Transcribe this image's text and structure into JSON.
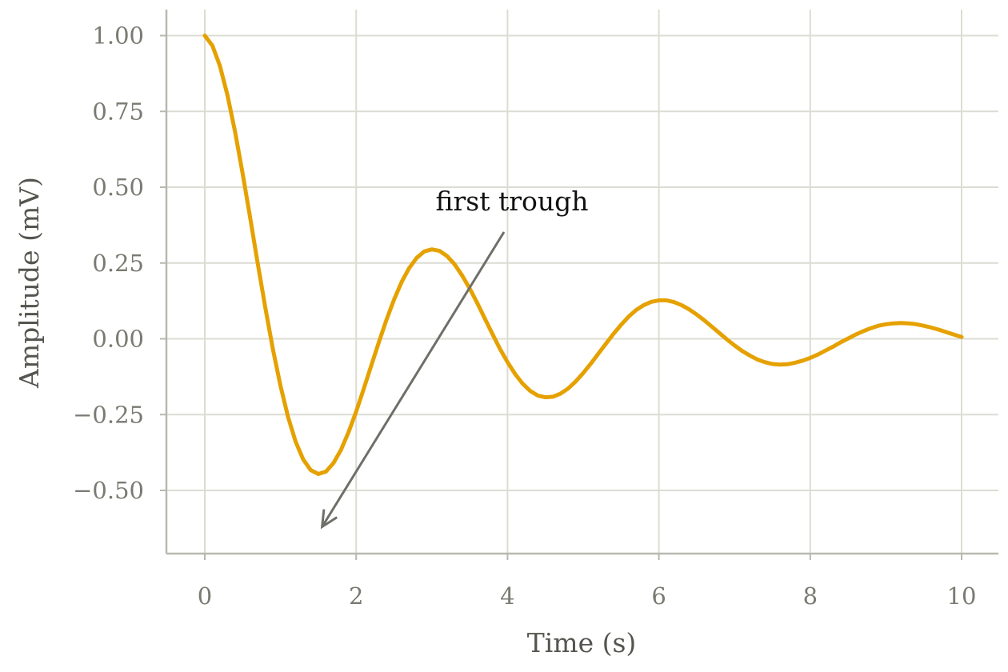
{
  "chart_data": {
    "type": "line",
    "title": "",
    "xlabel": "Time (s)",
    "ylabel": "Amplitude (mV)",
    "xlim": [
      -0.5,
      10.5
    ],
    "ylim": [
      -0.72,
      1.08
    ],
    "x_ticks": [
      0,
      2,
      4,
      6,
      8,
      10
    ],
    "x_tick_labels": [
      "0",
      "2",
      "4",
      "6",
      "8",
      "10"
    ],
    "y_ticks": [
      1.0,
      0.75,
      0.5,
      0.25,
      0.0,
      -0.25,
      -0.5
    ],
    "y_tick_labels": [
      "1.00",
      "0.75",
      "0.50",
      "0.25",
      "0.00",
      "−0.25",
      "−0.50"
    ],
    "grid": true,
    "legend": "none",
    "series": [
      {
        "color": "#e5a100",
        "x": [
          0,
          0.1,
          0.2,
          0.3,
          0.4,
          0.5,
          0.6,
          0.7,
          0.8,
          0.9,
          1.0,
          1.1,
          1.2,
          1.3,
          1.4,
          1.5,
          1.6,
          1.7,
          1.8,
          1.9,
          2.0,
          2.1,
          2.2,
          2.3,
          2.4,
          2.5,
          2.6,
          2.7,
          2.8,
          2.9,
          3.0,
          3.1,
          3.2,
          3.3,
          3.4,
          3.5,
          3.6,
          3.7,
          3.8,
          3.9,
          4.0,
          4.1,
          4.2,
          4.3,
          4.4,
          4.5,
          4.6,
          4.7,
          4.8,
          4.9,
          5.0,
          5.1,
          5.2,
          5.3,
          5.4,
          5.5,
          5.6,
          5.7,
          5.8,
          5.9,
          6.0,
          6.1,
          6.2,
          6.3,
          6.4,
          6.5,
          6.6,
          6.7,
          6.8,
          6.9,
          7.0,
          7.1,
          7.2,
          7.3,
          7.4,
          7.5,
          7.6,
          7.7,
          7.8,
          7.9,
          8.0,
          8.1,
          8.2,
          8.3,
          8.4,
          8.5,
          8.6,
          8.7,
          8.8,
          8.9,
          9.0,
          9.1,
          9.2,
          9.3,
          9.4,
          9.5,
          9.6,
          9.7,
          9.8,
          9.9,
          10.0
        ],
        "y": [
          1.0,
          0.967,
          0.9,
          0.803,
          0.683,
          0.545,
          0.398,
          0.248,
          0.102,
          -0.034,
          -0.155,
          -0.258,
          -0.339,
          -0.398,
          -0.433,
          -0.446,
          -0.438,
          -0.41,
          -0.366,
          -0.308,
          -0.24,
          -0.165,
          -0.088,
          -0.011,
          0.062,
          0.129,
          0.187,
          0.233,
          0.267,
          0.288,
          0.295,
          0.29,
          0.273,
          0.246,
          0.209,
          0.166,
          0.118,
          0.067,
          0.016,
          -0.033,
          -0.077,
          -0.116,
          -0.148,
          -0.172,
          -0.187,
          -0.193,
          -0.191,
          -0.181,
          -0.164,
          -0.141,
          -0.113,
          -0.082,
          -0.049,
          -0.016,
          0.016,
          0.046,
          0.073,
          0.095,
          0.111,
          0.122,
          0.127,
          0.127,
          0.121,
          0.111,
          0.097,
          0.08,
          0.061,
          0.04,
          0.019,
          -0.002,
          -0.022,
          -0.04,
          -0.055,
          -0.068,
          -0.077,
          -0.083,
          -0.085,
          -0.084,
          -0.079,
          -0.072,
          -0.063,
          -0.052,
          -0.039,
          -0.026,
          -0.012,
          0.001,
          0.014,
          0.025,
          0.035,
          0.043,
          0.048,
          0.051,
          0.052,
          0.051,
          0.048,
          0.043,
          0.037,
          0.03,
          0.022,
          0.014,
          0.006
        ]
      }
    ],
    "annotations": [
      {
        "text": "first trough",
        "xy": [
          1.55,
          -0.62
        ],
        "xytext": [
          3.05,
          0.42
        ]
      }
    ]
  },
  "colors": {
    "series": "#e5a100",
    "grid": "#dcdcd4",
    "axis": "#b8b8b0",
    "tick_text": "#7a7a72",
    "arrow": "#6f6f6a"
  }
}
